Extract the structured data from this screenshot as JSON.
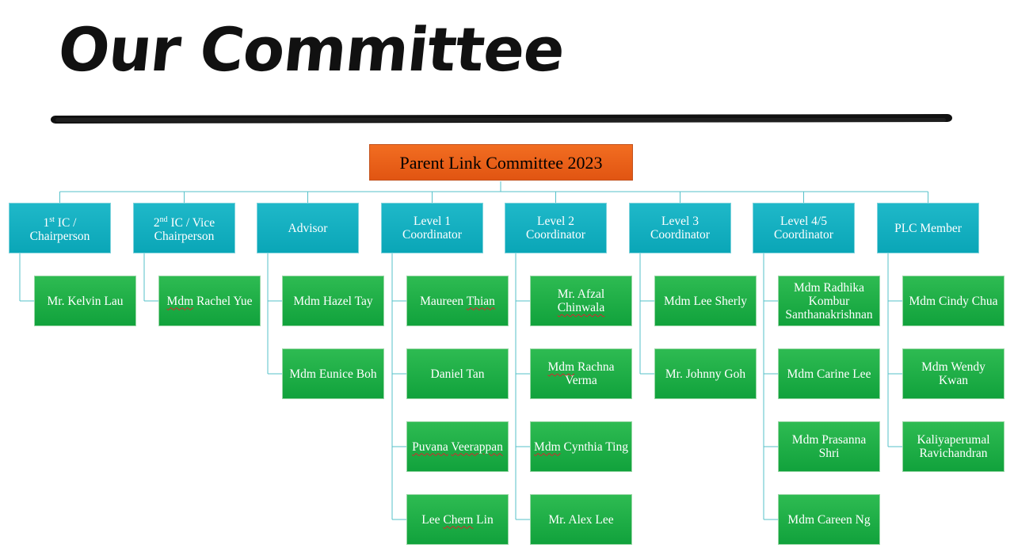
{
  "title": "Our Committee",
  "colors": {
    "root": "#e8601a",
    "heads": "#13aebf",
    "members": "#1ea944",
    "connector": "#56c1c9"
  },
  "root_label": "Parent Link Committee 2023",
  "columns": [
    {
      "head": "1st IC / Chairperson",
      "head_parts": {
        "num": "1",
        "sup": "st",
        "rest": " IC /",
        "line2": "Chairperson"
      },
      "members": [
        "Mr. Kelvin Lau"
      ]
    },
    {
      "head": "2nd IC / Vice Chairperson",
      "head_parts": {
        "num": "2",
        "sup": "nd",
        "rest": " IC / Vice",
        "line2": "Chairperson"
      },
      "members": [
        "Mdm Rachel Yue"
      ]
    },
    {
      "head": "Advisor",
      "members": [
        "Mdm Hazel Tay",
        "Mdm Eunice Boh"
      ]
    },
    {
      "head": "Level 1 Coordinator",
      "members": [
        "Maureen Thian",
        "Daniel Tan",
        "Puvana Veerappan",
        "Lee Chern Lin"
      ]
    },
    {
      "head": "Level 2 Coordinator",
      "members": [
        "Mr. Afzal Chinwala",
        "Mdm Rachna Verma",
        "Mdm Cynthia Ting",
        "Mr. Alex Lee"
      ]
    },
    {
      "head": "Level 3 Coordinator",
      "members": [
        "Mdm Lee Sherly",
        "Mr. Johnny Goh"
      ]
    },
    {
      "head": "Level 4/5 Coordinator",
      "members": [
        "Mdm Radhika Kombur Santhanakrishnan",
        "Mdm Carine Lee",
        "Mdm Prasanna Shri",
        "Mdm Careen Ng"
      ]
    },
    {
      "head": "PLC Member",
      "members": [
        "Mdm Cindy Chua",
        "Mdm Wendy Kwan",
        "Kaliyaperumal Ravichandran"
      ]
    }
  ]
}
